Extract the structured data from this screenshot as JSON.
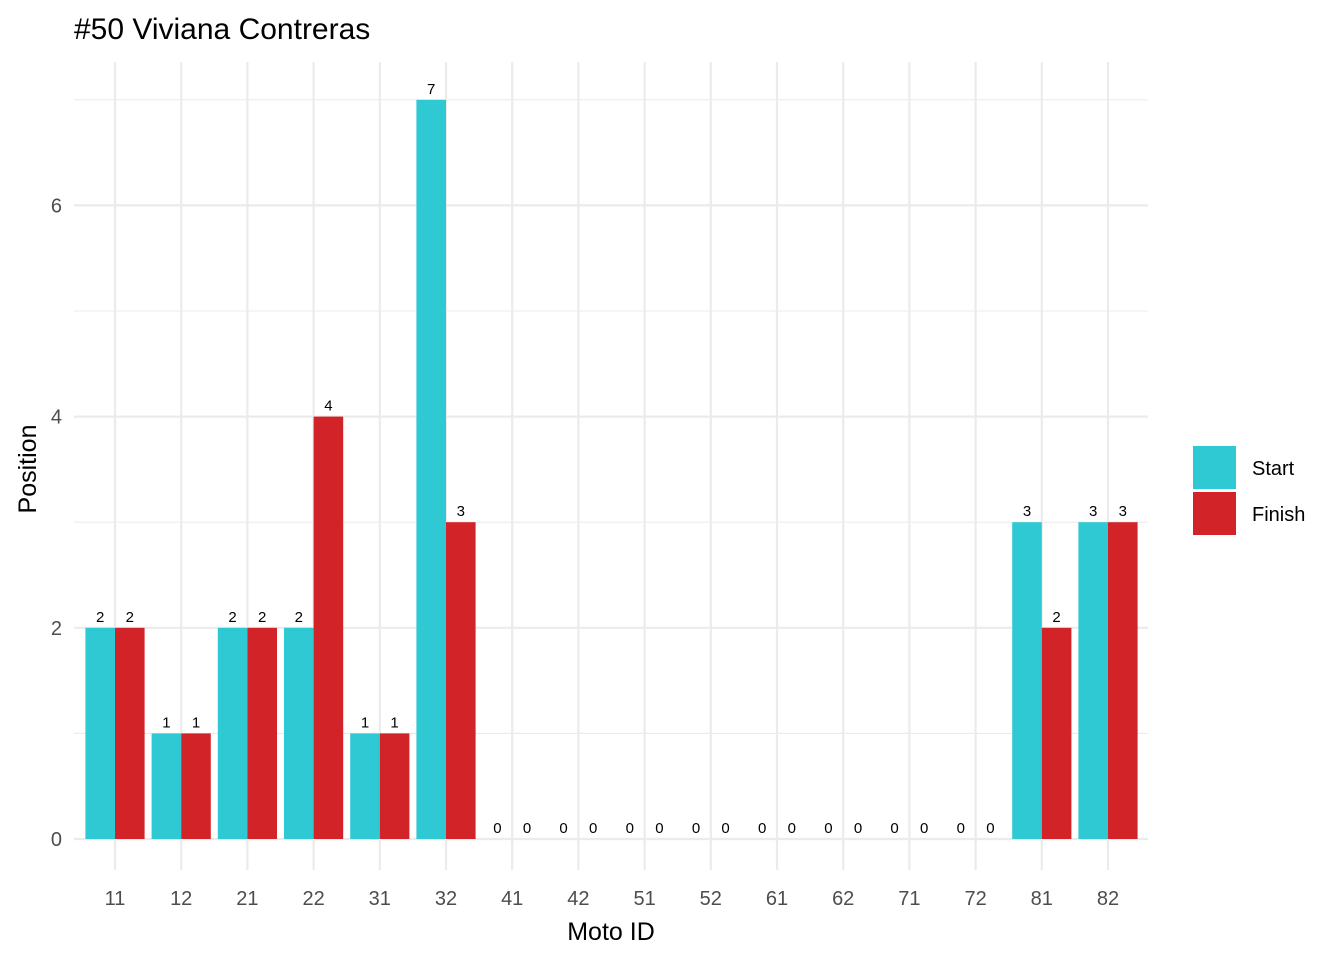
{
  "chart_data": {
    "type": "bar",
    "title": "#50 Viviana Contreras",
    "xlabel": "Moto ID",
    "ylabel": "Position",
    "categories": [
      "11",
      "12",
      "21",
      "22",
      "31",
      "32",
      "41",
      "42",
      "51",
      "52",
      "61",
      "62",
      "71",
      "72",
      "81",
      "82"
    ],
    "series": [
      {
        "name": "Start",
        "color": "#2ec9d2",
        "values": [
          2,
          1,
          2,
          2,
          1,
          7,
          0,
          0,
          0,
          0,
          0,
          0,
          0,
          0,
          3,
          3
        ]
      },
      {
        "name": "Finish",
        "color": "#d22328",
        "values": [
          2,
          1,
          2,
          4,
          1,
          3,
          0,
          0,
          0,
          0,
          0,
          0,
          0,
          0,
          2,
          3
        ]
      }
    ],
    "ylim": [
      0,
      7
    ],
    "yticks": [
      0,
      2,
      4,
      6
    ],
    "grid": true,
    "legend_position": "right",
    "data_labels": true
  }
}
